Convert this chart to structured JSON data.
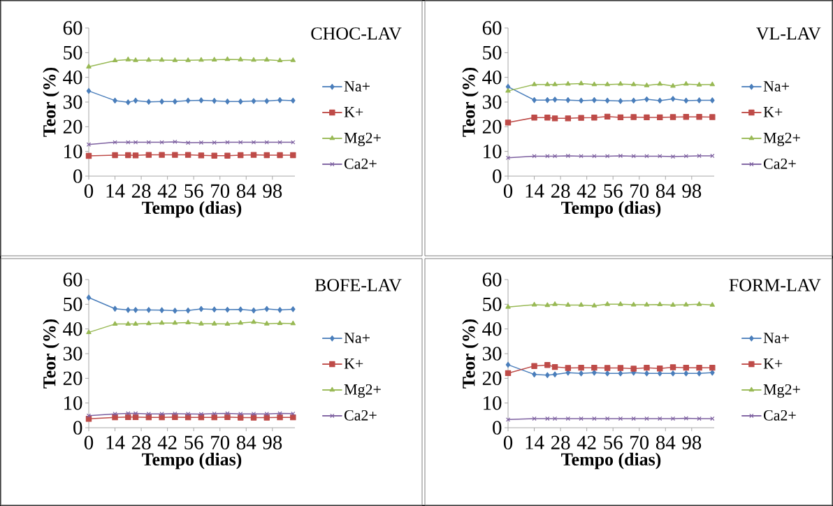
{
  "chart_data": [
    {
      "type": "line",
      "annotations": [
        "CHOC-LAV"
      ],
      "xlabel": "Tempo (dias)",
      "ylabel": "Teor (%)",
      "legend": "right",
      "xlim": [
        0,
        110
      ],
      "ylim": [
        0,
        60
      ],
      "xticks": [
        0,
        14,
        28,
        42,
        56,
        70,
        84,
        98
      ],
      "yticks": [
        0,
        10,
        20,
        30,
        40,
        50,
        60
      ],
      "x": [
        0,
        14,
        21,
        25,
        32,
        39,
        46,
        53,
        60,
        67,
        74,
        81,
        88,
        95,
        102,
        109
      ],
      "series": [
        {
          "name": "Na+",
          "color": "#4a7ebb",
          "marker": "diamond",
          "values": [
            34.5,
            30.6,
            29.9,
            30.6,
            30.1,
            30.2,
            30.2,
            30.6,
            30.7,
            30.5,
            30.2,
            30.2,
            30.4,
            30.4,
            30.8,
            30.6
          ]
        },
        {
          "name": "K+",
          "color": "#be4b48",
          "marker": "square",
          "values": [
            8.2,
            8.5,
            8.5,
            8.4,
            8.6,
            8.6,
            8.6,
            8.6,
            8.4,
            8.3,
            8.3,
            8.5,
            8.6,
            8.5,
            8.5,
            8.5
          ]
        },
        {
          "name": "Mg2+",
          "color": "#98b954",
          "marker": "triangle",
          "values": [
            44.3,
            46.8,
            47.2,
            46.9,
            47.0,
            47.0,
            46.9,
            46.9,
            47.0,
            47.1,
            47.3,
            47.2,
            47.0,
            47.1,
            46.8,
            46.9
          ]
        },
        {
          "name": "Ca2+",
          "color": "#7d60a0",
          "marker": "cross",
          "values": [
            12.8,
            13.7,
            13.7,
            13.7,
            13.7,
            13.7,
            13.9,
            13.5,
            13.6,
            13.6,
            13.7,
            13.7,
            13.7,
            13.7,
            13.7,
            13.7
          ]
        }
      ]
    },
    {
      "type": "line",
      "annotations": [
        "VL-LAV"
      ],
      "xlabel": "Tempo (dias)",
      "ylabel": "Teor (%)",
      "legend": "right",
      "xlim": [
        0,
        110
      ],
      "ylim": [
        0,
        60
      ],
      "xticks": [
        0,
        14,
        28,
        42,
        56,
        70,
        84,
        98
      ],
      "yticks": [
        0,
        10,
        20,
        30,
        40,
        50,
        60
      ],
      "x": [
        0,
        14,
        21,
        25,
        32,
        39,
        46,
        53,
        60,
        67,
        74,
        81,
        88,
        95,
        102,
        109
      ],
      "series": [
        {
          "name": "Na+",
          "color": "#4a7ebb",
          "marker": "diamond",
          "values": [
            36.2,
            30.8,
            30.8,
            31.0,
            30.8,
            30.6,
            30.8,
            30.6,
            30.4,
            30.6,
            31.1,
            30.6,
            31.3,
            30.6,
            30.7,
            30.7
          ]
        },
        {
          "name": "K+",
          "color": "#be4b48",
          "marker": "square",
          "values": [
            21.7,
            23.7,
            23.7,
            23.4,
            23.4,
            23.6,
            23.7,
            24.1,
            23.8,
            23.9,
            23.8,
            23.8,
            23.9,
            24.0,
            24.0,
            23.9
          ]
        },
        {
          "name": "Mg2+",
          "color": "#98b954",
          "marker": "triangle",
          "values": [
            34.5,
            37.1,
            37.1,
            37.1,
            37.3,
            37.5,
            37.1,
            37.1,
            37.3,
            37.1,
            36.7,
            37.3,
            36.5,
            37.3,
            37.0,
            37.1
          ]
        },
        {
          "name": "Ca2+",
          "color": "#7d60a0",
          "marker": "cross",
          "values": [
            7.4,
            8.1,
            8.1,
            8.1,
            8.2,
            8.1,
            8.1,
            8.1,
            8.2,
            8.1,
            8.1,
            8.1,
            7.9,
            8.1,
            8.2,
            8.2
          ]
        }
      ]
    },
    {
      "type": "line",
      "annotations": [
        "BOFE-LAV"
      ],
      "xlabel": "Tempo (dias)",
      "ylabel": "Teor (%)",
      "legend": "right",
      "xlim": [
        0,
        110
      ],
      "ylim": [
        0,
        60
      ],
      "xticks": [
        0,
        14,
        28,
        42,
        56,
        70,
        84,
        98
      ],
      "yticks": [
        0,
        10,
        20,
        30,
        40,
        50,
        60
      ],
      "x": [
        0,
        14,
        21,
        25,
        32,
        39,
        46,
        53,
        60,
        67,
        74,
        81,
        88,
        95,
        102,
        109
      ],
      "series": [
        {
          "name": "Na+",
          "color": "#4a7ebb",
          "marker": "diamond",
          "values": [
            52.7,
            48.2,
            47.7,
            47.7,
            47.7,
            47.6,
            47.4,
            47.5,
            48.1,
            47.9,
            47.8,
            47.9,
            47.5,
            48.1,
            47.7,
            48.0
          ]
        },
        {
          "name": "K+",
          "color": "#be4b48",
          "marker": "square",
          "values": [
            3.6,
            4.2,
            4.3,
            4.3,
            4.2,
            4.2,
            4.3,
            4.2,
            4.2,
            4.2,
            4.3,
            4.1,
            4.1,
            4.1,
            4.2,
            4.2
          ]
        },
        {
          "name": "Mg2+",
          "color": "#98b954",
          "marker": "triangle",
          "values": [
            38.6,
            42.0,
            42.0,
            42.0,
            42.2,
            42.4,
            42.4,
            42.6,
            42.1,
            42.1,
            42.0,
            42.4,
            42.8,
            42.1,
            42.3,
            42.2
          ]
        },
        {
          "name": "Ca2+",
          "color": "#7d60a0",
          "marker": "cross",
          "values": [
            4.9,
            5.6,
            5.8,
            5.8,
            5.6,
            5.6,
            5.7,
            5.6,
            5.5,
            5.7,
            5.8,
            5.6,
            5.6,
            5.6,
            5.8,
            5.7
          ]
        }
      ]
    },
    {
      "type": "line",
      "annotations": [
        "FORM-LAV"
      ],
      "xlabel": "Tempo (dias)",
      "ylabel": "Teor (%)",
      "legend": "right",
      "xlim": [
        0,
        110
      ],
      "ylim": [
        0,
        60
      ],
      "xticks": [
        0,
        14,
        28,
        42,
        56,
        70,
        84,
        98
      ],
      "yticks": [
        0,
        10,
        20,
        30,
        40,
        50,
        60
      ],
      "x": [
        0,
        14,
        21,
        25,
        32,
        39,
        46,
        53,
        60,
        67,
        74,
        81,
        88,
        95,
        102,
        109
      ],
      "series": [
        {
          "name": "Na+",
          "color": "#4a7ebb",
          "marker": "diamond",
          "values": [
            25.5,
            21.6,
            21.3,
            21.6,
            22.3,
            22.0,
            22.3,
            22.0,
            22.0,
            22.3,
            22.0,
            22.0,
            22.0,
            22.0,
            22.0,
            22.3
          ]
        },
        {
          "name": "K+",
          "color": "#be4b48",
          "marker": "square",
          "values": [
            22.1,
            25.0,
            25.4,
            24.6,
            24.2,
            24.3,
            24.3,
            24.2,
            24.2,
            23.9,
            24.3,
            24.0,
            24.5,
            24.3,
            24.3,
            24.3
          ]
        },
        {
          "name": "Mg2+",
          "color": "#98b954",
          "marker": "triangle",
          "values": [
            48.9,
            49.8,
            49.6,
            50.0,
            49.7,
            49.7,
            49.4,
            50.0,
            50.0,
            49.8,
            49.8,
            49.9,
            49.7,
            49.8,
            50.0,
            49.7
          ]
        },
        {
          "name": "Ca2+",
          "color": "#7d60a0",
          "marker": "cross",
          "values": [
            3.3,
            3.7,
            3.7,
            3.7,
            3.7,
            3.7,
            3.7,
            3.7,
            3.7,
            3.7,
            3.7,
            3.7,
            3.7,
            3.8,
            3.7,
            3.7
          ]
        }
      ]
    }
  ]
}
